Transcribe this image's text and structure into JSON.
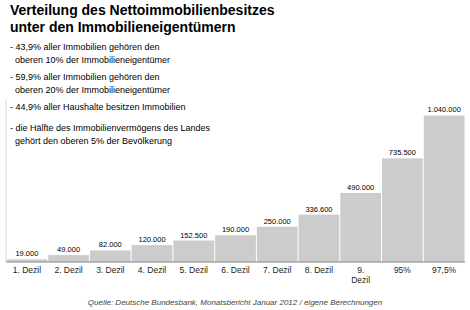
{
  "chart_data": {
    "type": "bar",
    "title": "Verteilung des Nettoimmobilienbesitzes\nunter den Immobilieneigentümern",
    "categories": [
      "1. Dezil",
      "2. Dezil",
      "3. Dezil",
      "4. Dezil",
      "5. Dezil",
      "6. Dezil",
      "7. Dezil",
      "8. Dezil",
      "9.\nDezil",
      "95%",
      "97,5%"
    ],
    "values": [
      19000,
      49000,
      82000,
      120000,
      152500,
      190000,
      250000,
      336600,
      490000,
      735500,
      1040000
    ],
    "value_labels": [
      "19.000",
      "49.000",
      "82.000",
      "120.000",
      "152.500",
      "190.000",
      "250.000",
      "336.600",
      "490.000",
      "735.500",
      "1.040.000"
    ],
    "color": "#cccccc",
    "annotations": [
      "- 43,9% aller Immobilien gehören den\n  oberen 10% der Immobilieneigentümer",
      "- 59,9% aller Immobilien gehören den\n  oberen 20% der Immobilieneigentümer",
      "- 44,9% aller Haushalte besitzen Immobilien",
      "- die Hälfte des Immobilienvermögens des Landes\n  gehört den oberen 5% der Bevölkerung"
    ],
    "source": "Quelle: Deutsche Bundesbank, Monatsbericht Januar 2012 / eigene Berechnungen",
    "ylim": [
      0,
      1150000
    ],
    "data_labels": true,
    "tick_labels": "x",
    "grid": false
  }
}
